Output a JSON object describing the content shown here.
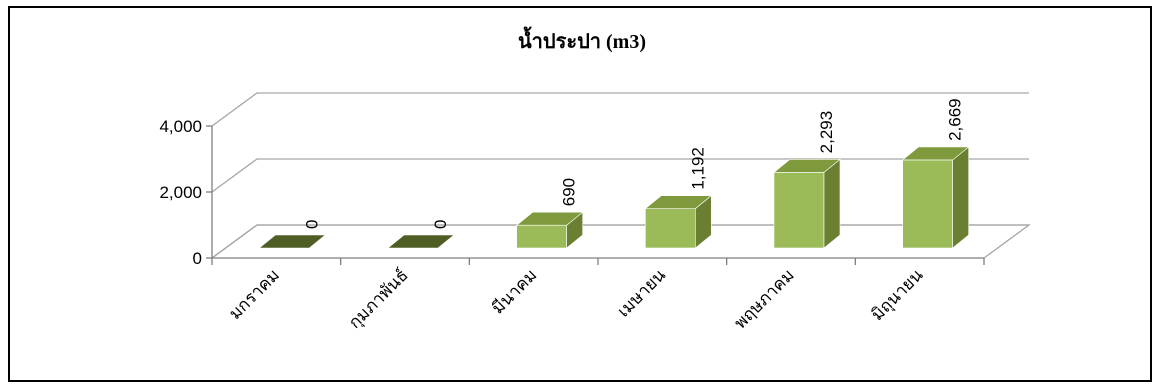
{
  "chart_data": {
    "type": "bar",
    "style": "3d-column",
    "title": "น้ำประปา (m3)",
    "xlabel": "",
    "ylabel": "",
    "categories": [
      "มกราคม",
      "กุมภาพันธ์",
      "มีนาคม",
      "เมษายน",
      "พฤษภาคม",
      "มิถุนายน"
    ],
    "values": [
      0,
      0,
      690,
      1192,
      2293,
      2669
    ],
    "value_labels": [
      "0",
      "0",
      "690",
      "1,192",
      "2,293",
      "2,669"
    ],
    "yticks": [
      "0",
      "2,000",
      "4,000"
    ],
    "ytick_values": [
      0,
      2000,
      4000
    ],
    "ylim": [
      0,
      4000
    ],
    "grid": true,
    "legend": "none",
    "colors": {
      "bar_front": "#9bbb59",
      "bar_side": "#6b7f33",
      "bar_top": "#7f9a3c",
      "zero_bar": "#4f5e25",
      "grid": "#a6a6a6",
      "axis": "#7f7f7f"
    }
  }
}
